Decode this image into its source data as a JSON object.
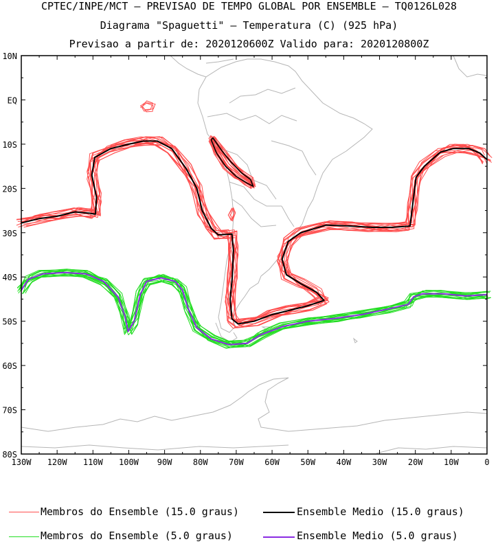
{
  "titles": {
    "line1": "CPTEC/INPE/MCT – PREVISAO DE TEMPO GLOBAL POR ENSEMBLE – TQ0126L028",
    "line2": "Diagrama \"Spaguetti\" – Temperatura (C) (925 hPa)",
    "line3": "Previsao a partir de: 2020120600Z  Valido para: 2020120800Z"
  },
  "chart_data": {
    "type": "line",
    "title": "Diagrama \"Spaguetti\" – Temperatura (C) (925 hPa)",
    "xlabel": "",
    "ylabel": "",
    "xlim": [
      -130,
      0
    ],
    "ylim": [
      -80,
      10
    ],
    "x_ticks": [
      {
        "value": -130,
        "label": "130W"
      },
      {
        "value": -120,
        "label": "120W"
      },
      {
        "value": -110,
        "label": "110W"
      },
      {
        "value": -100,
        "label": "100W"
      },
      {
        "value": -90,
        "label": "90W"
      },
      {
        "value": -80,
        "label": "80W"
      },
      {
        "value": -70,
        "label": "70W"
      },
      {
        "value": -60,
        "label": "60W"
      },
      {
        "value": -50,
        "label": "50W"
      },
      {
        "value": -40,
        "label": "40W"
      },
      {
        "value": -30,
        "label": "30W"
      },
      {
        "value": -20,
        "label": "20W"
      },
      {
        "value": -10,
        "label": "10W"
      },
      {
        "value": 0,
        "label": "0"
      }
    ],
    "y_ticks": [
      {
        "value": 10,
        "label": "10N"
      },
      {
        "value": 0,
        "label": "EQ"
      },
      {
        "value": -10,
        "label": "10S"
      },
      {
        "value": -20,
        "label": "20S"
      },
      {
        "value": -30,
        "label": "30S"
      },
      {
        "value": -40,
        "label": "40S"
      },
      {
        "value": -50,
        "label": "50S"
      },
      {
        "value": -60,
        "label": "60S"
      },
      {
        "value": -70,
        "label": "70S"
      },
      {
        "value": -80,
        "label": "80S"
      }
    ],
    "series": [
      {
        "name": "Membros do Ensemble (15.0 graus)",
        "color": "#ff4d4d",
        "members": 15,
        "jitter": 1.0,
        "points": [
          [
            -130,
            -27.8
          ],
          [
            -125,
            -26.8
          ],
          [
            -120,
            -26.3
          ],
          [
            -115,
            -25.3
          ],
          [
            -111,
            -25.6
          ],
          [
            -109.3,
            -25.8
          ],
          [
            -109,
            -22
          ],
          [
            -110.3,
            -17
          ],
          [
            -109.5,
            -13
          ],
          [
            -105,
            -11
          ],
          [
            -100,
            -10
          ],
          [
            -96,
            -9.3
          ],
          [
            -92,
            -9.3
          ],
          [
            -88,
            -11
          ],
          [
            -84,
            -15.5
          ],
          [
            -81,
            -20
          ],
          [
            -79.5,
            -25
          ],
          [
            -77,
            -29
          ],
          [
            -75,
            -30.5
          ],
          [
            -71.2,
            -30.3
          ],
          [
            -70.8,
            -34
          ],
          [
            -71.1,
            -40
          ],
          [
            -71.7,
            -45
          ],
          [
            -71.2,
            -49.5
          ],
          [
            -69.5,
            -50.6
          ],
          [
            -65,
            -50
          ],
          [
            -60,
            -48.5
          ],
          [
            -55,
            -47.5
          ],
          [
            -50,
            -46.5
          ],
          [
            -45.5,
            -45.3
          ],
          [
            -47.5,
            -43.5
          ],
          [
            -52,
            -41.5
          ],
          [
            -56,
            -39.5
          ],
          [
            -57.2,
            -36
          ],
          [
            -55.5,
            -32
          ],
          [
            -52,
            -30
          ],
          [
            -45,
            -28.3
          ],
          [
            -38,
            -28.5
          ],
          [
            -32,
            -28.8
          ],
          [
            -26.5,
            -28.8
          ],
          [
            -21.5,
            -28.5
          ],
          [
            -20.8,
            -24
          ],
          [
            -19.8,
            -17.5
          ],
          [
            -17.5,
            -15
          ],
          [
            -13,
            -11.8
          ],
          [
            -9.5,
            -11
          ],
          [
            -5,
            -11
          ],
          [
            -2,
            -12
          ],
          [
            0,
            -13.5
          ]
        ]
      },
      {
        "name": "Ensemble Medio (15.0 graus)",
        "color": "#000000",
        "members": 1,
        "jitter": 0,
        "points": [
          [
            -130,
            -27.8
          ],
          [
            -125,
            -26.8
          ],
          [
            -120,
            -26.3
          ],
          [
            -115,
            -25.3
          ],
          [
            -111,
            -25.6
          ],
          [
            -109.3,
            -25.8
          ],
          [
            -109,
            -22
          ],
          [
            -110.3,
            -17
          ],
          [
            -109.5,
            -13
          ],
          [
            -105,
            -11
          ],
          [
            -100,
            -10
          ],
          [
            -96,
            -9.3
          ],
          [
            -92,
            -9.3
          ],
          [
            -88,
            -11
          ],
          [
            -84,
            -15.5
          ],
          [
            -81,
            -20
          ],
          [
            -79.5,
            -25
          ],
          [
            -77,
            -29
          ],
          [
            -75,
            -30.5
          ],
          [
            -71.2,
            -30.3
          ],
          [
            -70.8,
            -34
          ],
          [
            -71.1,
            -40
          ],
          [
            -71.7,
            -45
          ],
          [
            -71.2,
            -49.5
          ],
          [
            -69.5,
            -50.6
          ],
          [
            -65,
            -50
          ],
          [
            -60,
            -48.5
          ],
          [
            -55,
            -47.5
          ],
          [
            -50,
            -46.5
          ],
          [
            -45.5,
            -45.3
          ],
          [
            -47.5,
            -43.5
          ],
          [
            -52,
            -41.5
          ],
          [
            -56,
            -39.5
          ],
          [
            -57.2,
            -36
          ],
          [
            -55.5,
            -32
          ],
          [
            -52,
            -30
          ],
          [
            -45,
            -28.3
          ],
          [
            -38,
            -28.5
          ],
          [
            -32,
            -28.8
          ],
          [
            -26.5,
            -28.8
          ],
          [
            -21.5,
            -28.5
          ],
          [
            -20.8,
            -24
          ],
          [
            -19.8,
            -17.5
          ],
          [
            -17.5,
            -15
          ],
          [
            -13,
            -11.8
          ],
          [
            -9.5,
            -11
          ],
          [
            -5,
            -11
          ],
          [
            -2,
            -12
          ],
          [
            0,
            -13.5
          ]
        ]
      },
      {
        "name": "Membros do Ensemble (5.0 graus)",
        "color": "#22dd22",
        "members": 15,
        "jitter": 0.8,
        "points": [
          [
            -130,
            -43
          ],
          [
            -128,
            -40.5
          ],
          [
            -124,
            -39.3
          ],
          [
            -118,
            -39
          ],
          [
            -112,
            -39.3
          ],
          [
            -107,
            -41
          ],
          [
            -103,
            -44.5
          ],
          [
            -101,
            -49
          ],
          [
            -100.2,
            -52.3
          ],
          [
            -98.5,
            -50
          ],
          [
            -96.8,
            -44
          ],
          [
            -95,
            -41
          ],
          [
            -91,
            -40.2
          ],
          [
            -87,
            -41
          ],
          [
            -85,
            -43
          ],
          [
            -83.5,
            -47
          ],
          [
            -81,
            -51.5
          ],
          [
            -77,
            -54
          ],
          [
            -72,
            -55.3
          ],
          [
            -67,
            -55
          ],
          [
            -63,
            -53
          ],
          [
            -57,
            -51.2
          ],
          [
            -50,
            -50
          ],
          [
            -42,
            -49.3
          ],
          [
            -35,
            -48.5
          ],
          [
            -28,
            -47.3
          ],
          [
            -22,
            -46.2
          ],
          [
            -20.5,
            -44.5
          ],
          [
            -18,
            -43.8
          ],
          [
            -12,
            -43.8
          ],
          [
            -6,
            -44.3
          ],
          [
            0,
            -44
          ]
        ]
      },
      {
        "name": "Ensemble Medio (5.0 graus)",
        "color": "#8a2be2",
        "members": 1,
        "jitter": 0,
        "points": [
          [
            -130,
            -43
          ],
          [
            -128,
            -40.5
          ],
          [
            -124,
            -39.3
          ],
          [
            -118,
            -39
          ],
          [
            -112,
            -39.3
          ],
          [
            -107,
            -41
          ],
          [
            -103,
            -44.5
          ],
          [
            -101,
            -49
          ],
          [
            -100.2,
            -52.3
          ],
          [
            -98.5,
            -50
          ],
          [
            -96.8,
            -44
          ],
          [
            -95,
            -41
          ],
          [
            -91,
            -40.2
          ],
          [
            -87,
            -41
          ],
          [
            -85,
            -43
          ],
          [
            -83.5,
            -47
          ],
          [
            -81,
            -51.5
          ],
          [
            -77,
            -54
          ],
          [
            -72,
            -55.3
          ],
          [
            -67,
            -55
          ],
          [
            -63,
            -53
          ],
          [
            -57,
            -51.2
          ],
          [
            -50,
            -50
          ],
          [
            -42,
            -49.3
          ],
          [
            -35,
            -48.5
          ],
          [
            -28,
            -47.3
          ],
          [
            -22,
            -46.2
          ],
          [
            -20.5,
            -44.5
          ],
          [
            -18,
            -43.8
          ],
          [
            -12,
            -43.8
          ],
          [
            -6,
            -44.3
          ],
          [
            0,
            -44
          ]
        ]
      }
    ],
    "extra_contours": [
      {
        "name": "andes-isoline",
        "series": "Membros do Ensemble (15.0 graus)",
        "members": 12,
        "jitter": 0.5,
        "points": [
          [
            -77,
            -9
          ],
          [
            -75.5,
            -12
          ],
          [
            -73,
            -15
          ],
          [
            -70,
            -17.3
          ],
          [
            -67,
            -18.8
          ],
          [
            -65.3,
            -19.5
          ],
          [
            -66,
            -18
          ],
          [
            -68.5,
            -16.5
          ],
          [
            -71.5,
            -14
          ],
          [
            -74,
            -11.5
          ],
          [
            -76.5,
            -8.6
          ],
          [
            -77,
            -9
          ]
        ]
      },
      {
        "name": "pacific-eq-blob",
        "series": "Membros do Ensemble (15.0 graus)",
        "members": 3,
        "jitter": 0.3,
        "points": [
          [
            -96.5,
            -1.5
          ],
          [
            -95,
            -0.5
          ],
          [
            -93,
            -1
          ],
          [
            -93.5,
            -2.3
          ],
          [
            -95.5,
            -2.5
          ],
          [
            -96.5,
            -1.5
          ]
        ]
      },
      {
        "name": "coastal-blob",
        "series": "Membros do Ensemble (15.0 graus)",
        "members": 3,
        "jitter": 0.2,
        "points": [
          [
            -72,
            -26
          ],
          [
            -71,
            -24.5
          ],
          [
            -70.5,
            -25.5
          ],
          [
            -71.2,
            -27.2
          ],
          [
            -72,
            -26
          ]
        ]
      }
    ]
  },
  "legend": {
    "items": [
      {
        "label": "Membros do Ensemble (15.0 graus)",
        "color": "#ff4d4d"
      },
      {
        "label": "Ensemble Medio (15.0 graus)",
        "color": "#000000"
      },
      {
        "label": "Membros do Ensemble (5.0 graus)",
        "color": "#22dd22"
      },
      {
        "label": "Ensemble Medio (5.0 graus)",
        "color": "#8a2be2"
      }
    ]
  },
  "colors": {
    "coastline": "#b5b5b5",
    "axis": "#000000"
  }
}
